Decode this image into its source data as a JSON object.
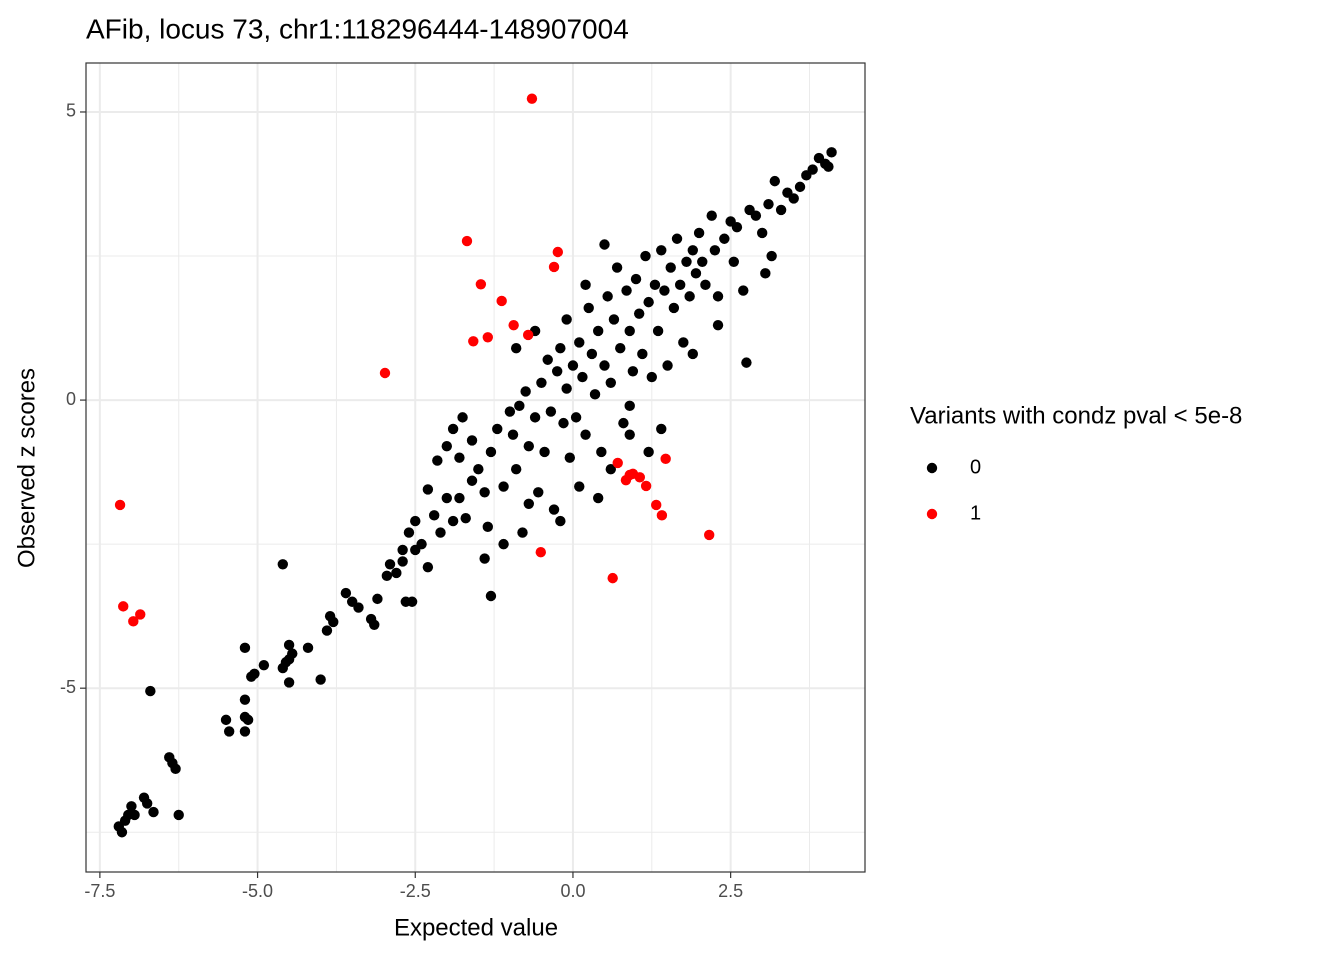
{
  "chart_data": {
    "type": "scatter",
    "title": "AFib, locus 73, chr1:118296444-148907004",
    "x_label": "Expected value",
    "y_label": "Observed z scores",
    "legend_title": "Variants with condz pval < 5e-8",
    "legend_position": "right",
    "grid": true,
    "xlim": [
      -7.72,
      4.63
    ],
    "ylim": [
      -8.19,
      5.85
    ],
    "xticks": [
      -7.5,
      {
        "value": -5,
        "label": "-5.0"
      },
      -2.5,
      {
        "value": 0,
        "label": "0.0"
      },
      2.5
    ],
    "yticks": [
      5,
      0,
      -5
    ],
    "x_minor_grid": [
      -6.25,
      -3.75,
      -1.25,
      1.25,
      3.75
    ],
    "y_minor_grid": [
      2.5,
      -2.5,
      -7.5
    ],
    "series": [
      {
        "name": "0",
        "color": "#000000",
        "x": [
          -7.2,
          -7.15,
          -7.1,
          -7.05,
          -7.0,
          -6.95,
          -6.8,
          -6.75,
          -6.65,
          -6.4,
          -6.35,
          -6.3,
          -6.25,
          -6.7,
          -5.5,
          -5.45,
          -5.2,
          -5.15,
          -5.2,
          -5.1,
          -5.05,
          -5.2,
          -5.2,
          -4.9,
          -4.6,
          -4.55,
          -4.5,
          -4.45,
          -4.5,
          -4.5,
          -4.6,
          -4.2,
          -4.0,
          -3.9,
          -3.8,
          -3.85,
          -3.6,
          -3.5,
          -3.4,
          -3.2,
          -3.15,
          -3.1,
          -2.9,
          -2.95,
          -2.8,
          -2.7,
          -2.65,
          -2.55,
          -2.6,
          -2.5,
          -2.4,
          -2.3,
          -2.2,
          -2.1,
          -2.15,
          -2.3,
          -2.0,
          -1.9,
          -1.8,
          -1.7,
          -1.6,
          -1.75,
          -1.6,
          -1.5,
          -1.4,
          -1.35,
          -1.3,
          -1.2,
          -1.1,
          -1.3,
          -1.4,
          -0.95,
          -0.9,
          -0.85,
          -0.8,
          -0.75,
          -0.7,
          -0.6,
          -0.5,
          -0.55,
          -0.45,
          -0.4,
          -0.35,
          -0.3,
          -0.25,
          -0.2,
          -0.15,
          -0.1,
          -0.05,
          0.0,
          0.05,
          0.1,
          0.15,
          0.2,
          0.25,
          0.3,
          0.35,
          0.4,
          0.45,
          0.5,
          0.55,
          0.6,
          0.65,
          0.7,
          0.75,
          0.8,
          0.85,
          0.9,
          0.95,
          1.0,
          1.05,
          1.1,
          1.15,
          1.2,
          1.25,
          1.3,
          1.35,
          1.4,
          1.45,
          1.5,
          1.55,
          1.6,
          1.65,
          1.7,
          1.75,
          1.8,
          1.85,
          1.9,
          1.95,
          2.0,
          2.05,
          2.1,
          2.2,
          2.25,
          2.3,
          2.4,
          2.5,
          2.55,
          2.6,
          2.7,
          2.75,
          2.8,
          2.9,
          3.0,
          3.05,
          3.1,
          3.15,
          3.2,
          3.3,
          3.4,
          3.5,
          3.6,
          3.7,
          3.8,
          3.9,
          4.0,
          4.05,
          4.1,
          1.4,
          0.9,
          0.1,
          -0.1,
          -0.6,
          0.2,
          0.5,
          -0.9,
          -1.0,
          -1.8,
          -2.0,
          -1.9,
          0.9,
          1.2,
          0.6,
          0.4,
          -0.2,
          1.9,
          2.3,
          -2.5,
          -2.7,
          -1.1,
          -0.7
        ],
        "values": [
          -7.4,
          -7.5,
          -7.3,
          -7.2,
          -7.05,
          -7.2,
          -6.9,
          -7.0,
          -7.15,
          -6.2,
          -6.3,
          -6.4,
          -7.2,
          -5.05,
          -5.55,
          -5.75,
          -5.5,
          -5.55,
          -5.75,
          -4.8,
          -4.75,
          -4.3,
          -5.2,
          -4.6,
          -4.65,
          -4.55,
          -4.5,
          -4.4,
          -4.9,
          -4.25,
          -2.85,
          -4.3,
          -4.85,
          -4.0,
          -3.85,
          -3.75,
          -3.35,
          -3.5,
          -3.6,
          -3.8,
          -3.9,
          -3.45,
          -2.85,
          -3.05,
          -3.0,
          -2.6,
          -3.5,
          -3.5,
          -2.3,
          -2.6,
          -2.5,
          -2.9,
          -2.0,
          -2.3,
          -1.05,
          -1.55,
          -1.7,
          -2.1,
          -1.7,
          -2.05,
          -1.4,
          -0.3,
          -0.7,
          -1.2,
          -1.6,
          -2.2,
          -0.9,
          -0.5,
          -1.5,
          -3.4,
          -2.75,
          -0.6,
          -1.2,
          -0.1,
          -2.3,
          0.15,
          -0.8,
          -0.3,
          0.3,
          -1.6,
          -0.9,
          0.7,
          -0.2,
          -1.9,
          0.5,
          0.9,
          -0.4,
          0.2,
          -1.0,
          0.6,
          -0.3,
          1.0,
          0.4,
          -0.6,
          1.6,
          0.8,
          0.1,
          1.2,
          -0.9,
          0.6,
          1.8,
          0.3,
          1.4,
          2.3,
          0.9,
          -0.4,
          1.9,
          1.2,
          0.5,
          2.1,
          1.5,
          0.8,
          2.5,
          1.7,
          0.4,
          2.0,
          1.2,
          2.6,
          1.9,
          0.6,
          2.3,
          1.6,
          2.8,
          2.0,
          1.0,
          2.4,
          1.8,
          2.6,
          2.2,
          2.9,
          2.4,
          2.0,
          3.2,
          2.6,
          1.8,
          2.8,
          3.1,
          2.4,
          3.0,
          1.9,
          0.65,
          3.3,
          3.2,
          2.9,
          2.2,
          3.4,
          2.5,
          3.8,
          3.3,
          3.6,
          3.5,
          3.7,
          3.9,
          4.0,
          4.2,
          4.1,
          4.05,
          4.3,
          -0.5,
          -0.1,
          -1.5,
          1.4,
          1.2,
          2.0,
          2.7,
          0.9,
          -0.2,
          -1.0,
          -0.8,
          -0.5,
          -0.6,
          -0.9,
          -1.2,
          -1.7,
          -2.1,
          0.8,
          1.3,
          -2.1,
          -2.8,
          -2.5,
          -1.8
        ]
      },
      {
        "name": "1",
        "color": "#ff0000",
        "x": [
          -7.18,
          -7.13,
          -6.97,
          -6.86,
          -2.98,
          -1.68,
          -1.46,
          -1.58,
          -1.35,
          -1.13,
          -0.94,
          -0.71,
          -0.65,
          -0.3,
          -0.24,
          -0.51,
          0.63,
          0.71,
          0.84,
          0.9,
          0.95,
          1.06,
          1.16,
          1.32,
          1.41,
          1.47,
          2.16
        ],
        "values": [
          -1.82,
          -3.58,
          -3.84,
          -3.72,
          0.47,
          2.76,
          2.01,
          1.02,
          1.09,
          1.72,
          1.3,
          1.13,
          5.23,
          2.31,
          2.57,
          -2.64,
          -3.09,
          -1.09,
          -1.39,
          -1.3,
          -1.28,
          -1.34,
          -1.49,
          -1.82,
          -2.0,
          -1.02,
          -2.34
        ]
      }
    ]
  }
}
